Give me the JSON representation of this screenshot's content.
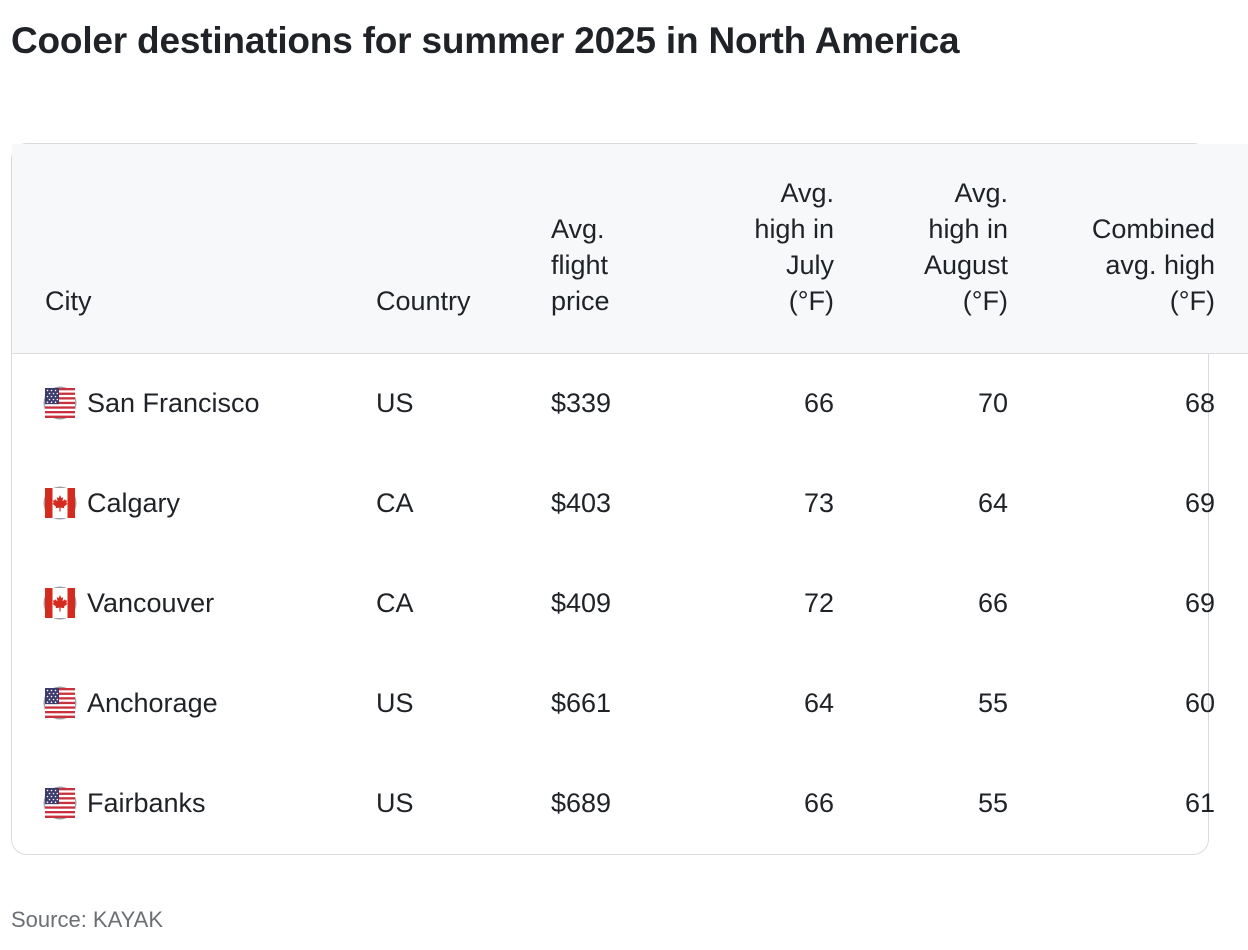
{
  "title": "Cooler destinations for summer 2025 in North America",
  "table": {
    "headers": {
      "city": "City",
      "country": "Country",
      "price": [
        "Avg.",
        "flight",
        "price"
      ],
      "july": [
        "Avg.",
        "high in",
        "July",
        "(°F)"
      ],
      "august": [
        "Avg.",
        "high in",
        "August",
        "(°F)"
      ],
      "combined": [
        "Combined",
        "avg. high",
        "(°F)"
      ]
    },
    "rows": [
      {
        "flag_icon": "us-flag-icon",
        "city": "San Francisco",
        "country": "US",
        "price": "$339",
        "july": "66",
        "august": "70",
        "combined": "68"
      },
      {
        "flag_icon": "canada-flag-icon",
        "city": "Calgary",
        "country": "CA",
        "price": "$403",
        "july": "73",
        "august": "64",
        "combined": "69"
      },
      {
        "flag_icon": "canada-flag-icon",
        "city": "Vancouver",
        "country": "CA",
        "price": "$409",
        "july": "72",
        "august": "66",
        "combined": "69"
      },
      {
        "flag_icon": "us-flag-icon",
        "city": "Anchorage",
        "country": "US",
        "price": "$661",
        "july": "64",
        "august": "55",
        "combined": "60"
      },
      {
        "flag_icon": "us-flag-icon",
        "city": "Fairbanks",
        "country": "US",
        "price": "$689",
        "july": "66",
        "august": "55",
        "combined": "61"
      }
    ]
  },
  "source": "Source: KAYAK",
  "colors": {
    "text": "#1f2226",
    "header_bg": "#f7f8fa",
    "border": "#d9dbde",
    "source_text": "#6b7075"
  }
}
